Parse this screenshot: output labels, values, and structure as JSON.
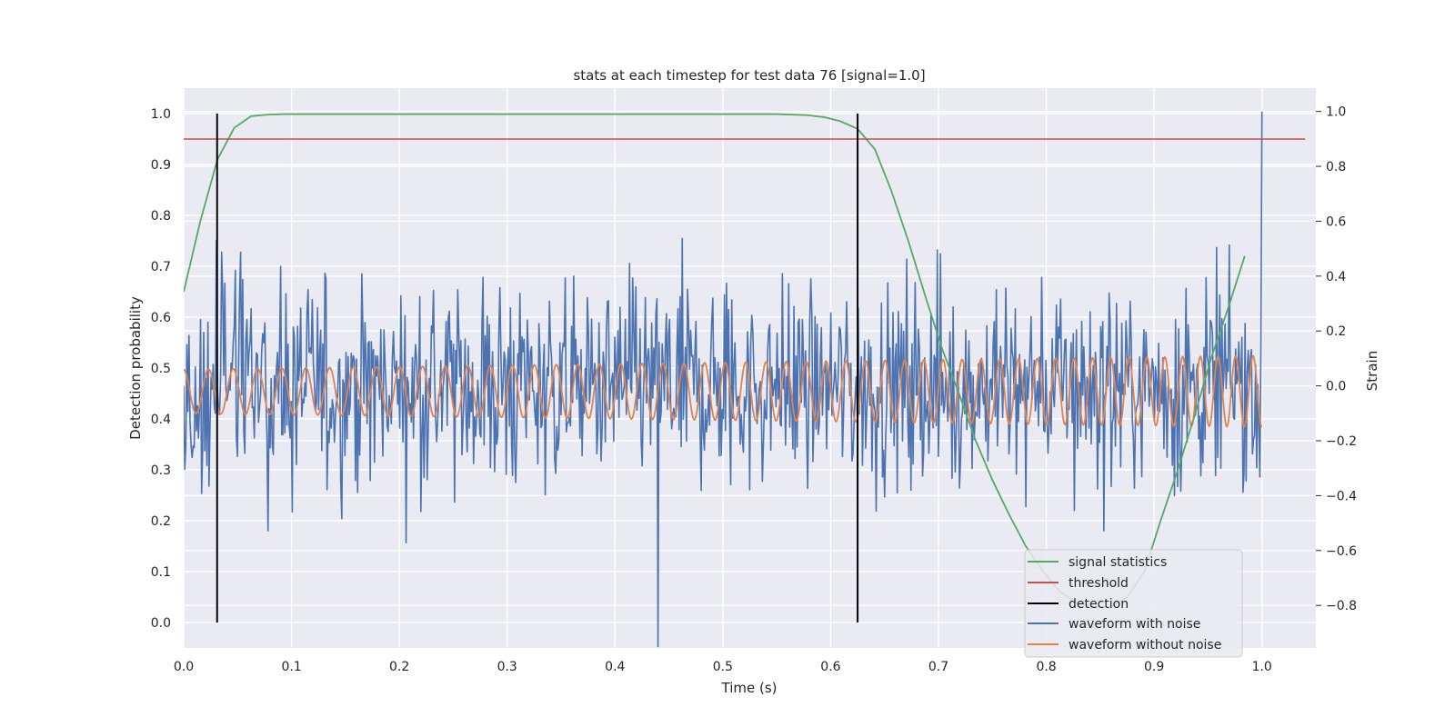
{
  "chart_data": {
    "type": "line",
    "title": "stats at each timestep for test data 76 [signal=1.0]",
    "xlabel": "Time (s)",
    "ylabel": "Detection probability",
    "y2label": "Strain",
    "xlim": [
      0.0,
      1.05
    ],
    "ylim": [
      -0.05,
      1.05
    ],
    "y2lim": [
      -0.955,
      1.085
    ],
    "xticks": [
      "0.0",
      "0.1",
      "0.2",
      "0.3",
      "0.4",
      "0.5",
      "0.6",
      "0.7",
      "0.8",
      "0.9",
      "1.0"
    ],
    "yticks": [
      "0.0",
      "0.1",
      "0.2",
      "0.3",
      "0.4",
      "0.5",
      "0.6",
      "0.7",
      "0.8",
      "0.9",
      "1.0"
    ],
    "y2ticks": [
      "−0.8",
      "−0.6",
      "−0.4",
      "−0.2",
      "0.0",
      "0.2",
      "0.4",
      "0.6",
      "0.8",
      "1.0"
    ],
    "grid": true,
    "legend_position": "lower-right",
    "colors": {
      "signal_statistics": "#55a868",
      "threshold": "#c44e52",
      "detection": "#000000",
      "waveform_with_noise": "#4c72b0",
      "waveform_without_noise": "#dd8452",
      "background": "#eaeaf2"
    },
    "series": [
      {
        "name": "signal statistics",
        "axis": "left",
        "x": [
          0.0,
          0.0156,
          0.0313,
          0.0469,
          0.0625,
          0.0781,
          0.0938,
          0.1,
          0.2,
          0.3,
          0.4,
          0.5,
          0.55,
          0.578,
          0.594,
          0.609,
          0.625,
          0.641,
          0.656,
          0.672,
          0.688,
          0.703,
          0.719,
          0.734,
          0.75,
          0.766,
          0.781,
          0.797,
          0.813,
          0.828,
          0.844,
          0.859,
          0.875,
          0.891,
          0.906,
          0.922,
          0.938,
          0.953,
          0.969,
          0.984
        ],
        "values": [
          0.65,
          0.79,
          0.91,
          0.972,
          0.995,
          0.998,
          0.999,
          0.999,
          0.999,
          0.999,
          0.999,
          0.999,
          0.999,
          0.997,
          0.993,
          0.985,
          0.97,
          0.93,
          0.85,
          0.75,
          0.64,
          0.54,
          0.45,
          0.36,
          0.28,
          0.21,
          0.15,
          0.1,
          0.06,
          0.04,
          0.03,
          0.03,
          0.05,
          0.1,
          0.2,
          0.3,
          0.41,
          0.52,
          0.62,
          0.72
        ]
      },
      {
        "name": "threshold",
        "axis": "left",
        "x": [
          0.0,
          1.04
        ],
        "values": [
          0.95,
          0.95
        ]
      },
      {
        "name": "detection",
        "axis": "left",
        "x": [
          0.031,
          0.625
        ],
        "ymin": 0.0,
        "ymax": 1.0
      },
      {
        "name": "waveform with noise",
        "axis": "right",
        "x_range": [
          0.0,
          1.0
        ],
        "amplitude_range": [
          -0.95,
          1.0
        ]
      },
      {
        "name": "waveform without noise",
        "axis": "right",
        "x_range": [
          0.0,
          1.0
        ],
        "amplitude_start": 0.08,
        "amplitude_end": 0.13,
        "frequency_start_hz": 43,
        "frequency_end_hz": 62
      }
    ]
  }
}
